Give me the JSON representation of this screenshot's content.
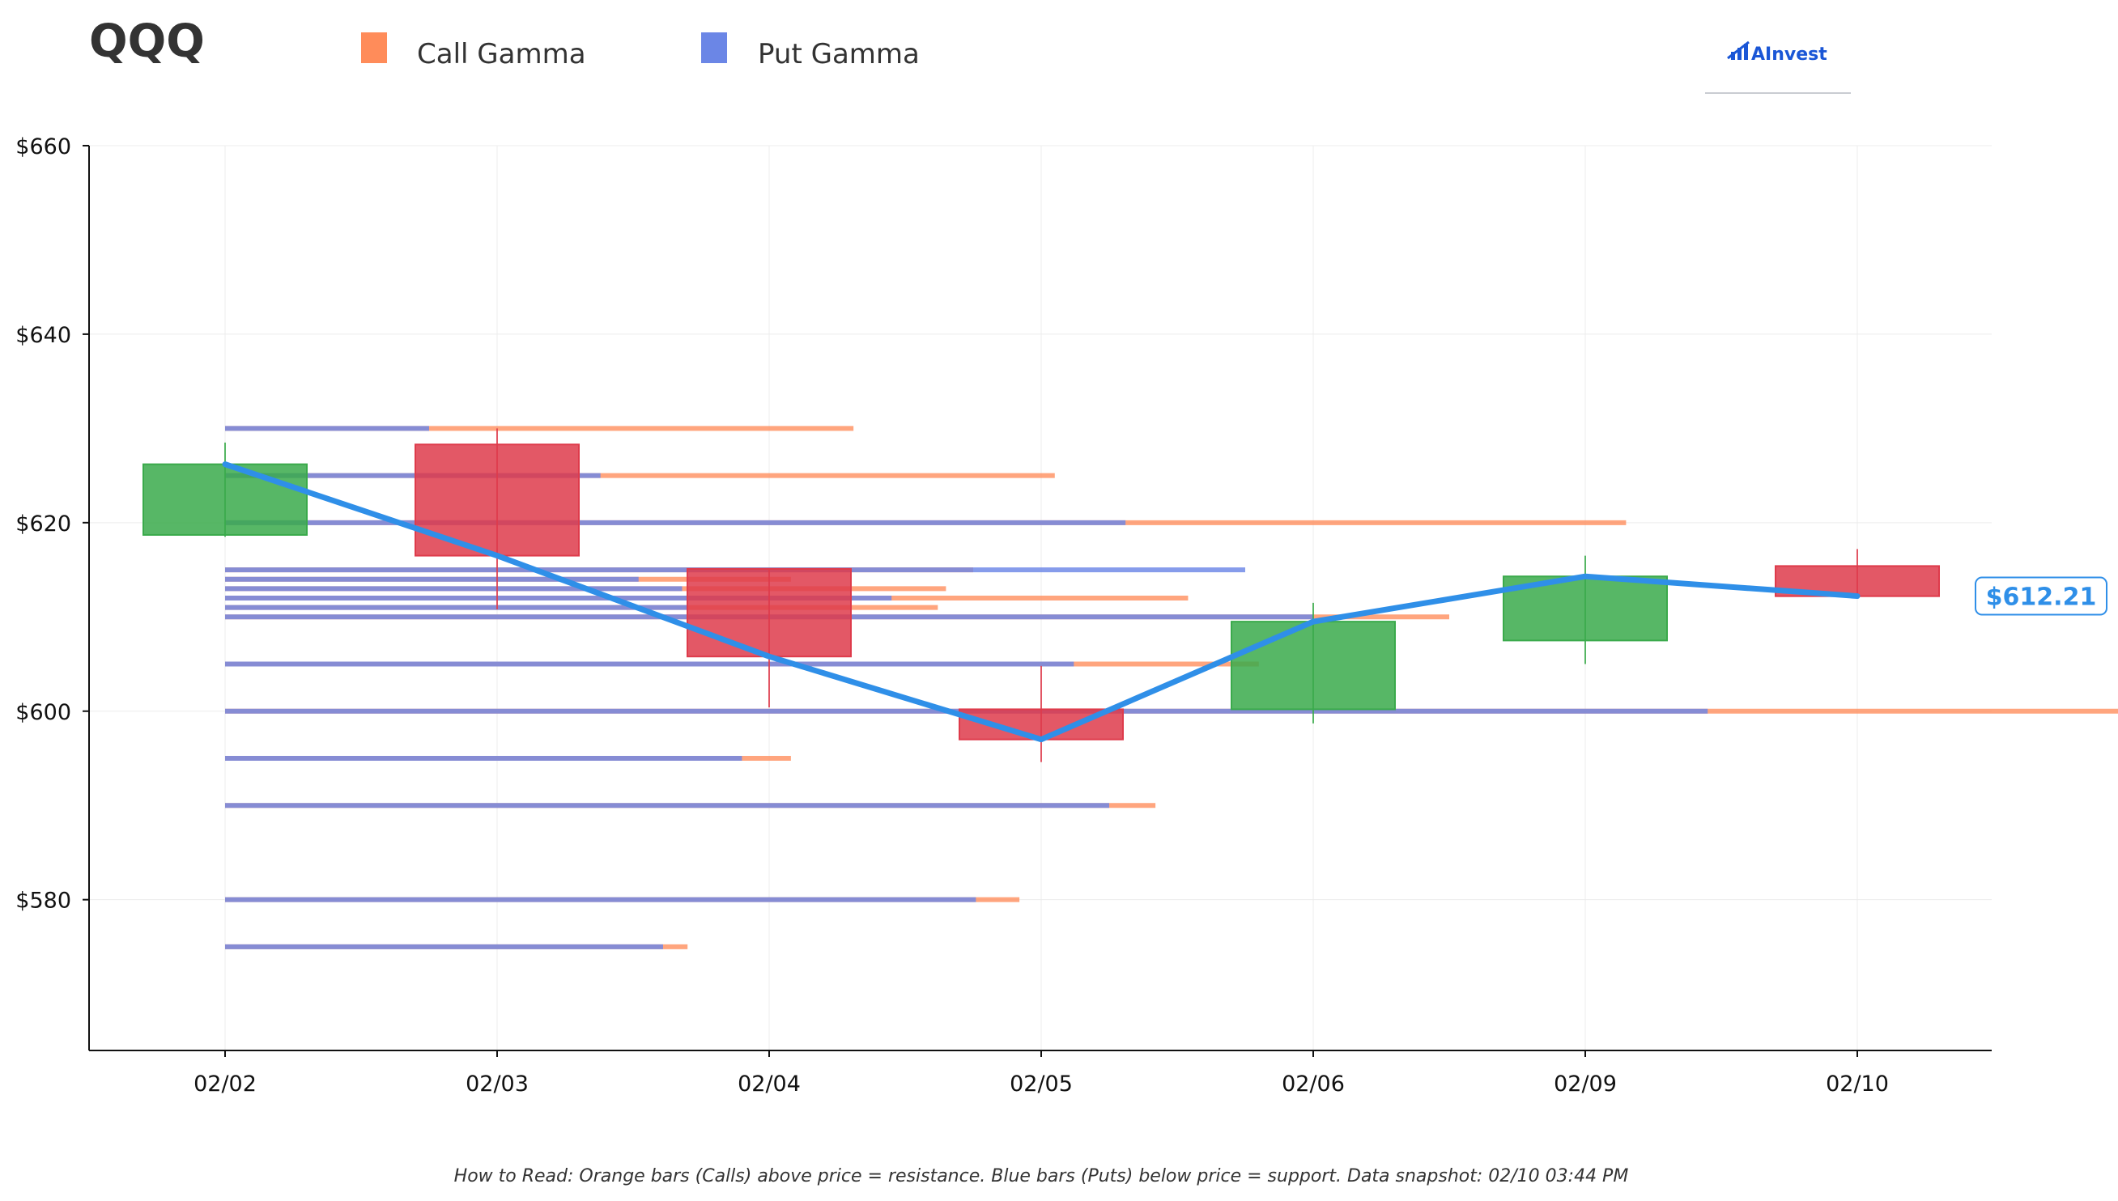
{
  "header": {
    "title": "QQQ",
    "legend": [
      {
        "label": "Call Gamma",
        "color": "#ff8c5a"
      },
      {
        "label": "Put Gamma",
        "color": "#6b86e6"
      }
    ],
    "logo_text": "AInvest"
  },
  "footer": {
    "note": "How to Read: Orange bars (Calls) above price = resistance. Blue bars (Puts) below price = support. Data snapshot: 02/10 03:44 PM"
  },
  "chart_data": {
    "type": "candlestick",
    "categories": [
      "02/02",
      "02/03",
      "02/04",
      "02/05",
      "02/06",
      "02/09",
      "02/10"
    ],
    "ylim": [
      564,
      660
    ],
    "yticks": [
      580,
      600,
      620,
      640,
      660
    ],
    "ytick_labels": [
      "$580",
      "$600",
      "$620",
      "$640",
      "$660"
    ],
    "candles": [
      {
        "date": "02/02",
        "open": 618.7,
        "close": 626.2,
        "high": 628.5,
        "low": 618.5
      },
      {
        "date": "02/03",
        "open": 628.3,
        "close": 616.5,
        "high": 630.0,
        "low": 610.8
      },
      {
        "date": "02/04",
        "open": 615.1,
        "close": 605.8,
        "high": 615.1,
        "low": 600.4
      },
      {
        "date": "02/05",
        "open": 600.2,
        "close": 597.0,
        "high": 604.8,
        "low": 594.6
      },
      {
        "date": "02/06",
        "open": 600.2,
        "close": 609.5,
        "high": 611.5,
        "low": 598.7
      },
      {
        "date": "02/09",
        "open": 607.5,
        "close": 614.3,
        "high": 616.5,
        "low": 605.0
      },
      {
        "date": "02/10",
        "open": 615.4,
        "close": 612.2,
        "high": 617.2,
        "low": 612.0
      }
    ],
    "close_line": [
      626.2,
      616.5,
      605.8,
      597.0,
      609.5,
      614.3,
      612.21
    ],
    "last_price_label": "$612.21",
    "gamma_levels": [
      {
        "strike": 630,
        "put": 0.75,
        "call": 2.31
      },
      {
        "strike": 625,
        "put": 1.38,
        "call": 3.05
      },
      {
        "strike": 620,
        "put": 3.31,
        "call": 5.15
      },
      {
        "strike": 615,
        "put": 3.75,
        "call": 2.75
      },
      {
        "strike": 614,
        "put": 1.52,
        "call": 2.08
      },
      {
        "strike": 613,
        "put": 1.68,
        "call": 2.65
      },
      {
        "strike": 612,
        "put": 2.45,
        "call": 3.54
      },
      {
        "strike": 611,
        "put": 1.7,
        "call": 2.62
      },
      {
        "strike": 610,
        "put": 4.0,
        "call": 4.5
      },
      {
        "strike": 605,
        "put": 3.12,
        "call": 3.8
      },
      {
        "strike": 600,
        "put": 5.45,
        "call": 6.98
      },
      {
        "strike": 595,
        "put": 1.9,
        "call": 2.08
      },
      {
        "strike": 590,
        "put": 3.25,
        "call": 3.42
      },
      {
        "strike": 580,
        "put": 2.76,
        "call": 2.92
      },
      {
        "strike": 575,
        "put": 1.61,
        "call": 1.7
      }
    ],
    "colors": {
      "up": "#3aaa4b",
      "down": "#de3b4b",
      "close_line": "#2f8fe8",
      "call": "#ff8c5a",
      "put": "#6b86e6"
    }
  }
}
